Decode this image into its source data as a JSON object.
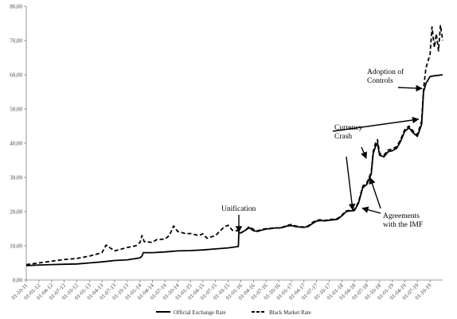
{
  "chart_data": {
    "type": "line",
    "title": "",
    "xlabel": "",
    "ylabel": "",
    "ylim": [
      0,
      80
    ],
    "yticks": [
      "0,00",
      "10,00",
      "20,00",
      "30,00",
      "40,00",
      "50,00",
      "60,00",
      "70,00",
      "80,00"
    ],
    "xticks": [
      "01-10-11",
      "01-01-12",
      "01-04-12",
      "01-07-12",
      "01-10-12",
      "01-01-13",
      "01-04-13",
      "01-07-13",
      "01-10-13",
      "01-01-14",
      "01-04-14",
      "01-07-14",
      "01-10-14",
      "01-01-15",
      "01-04-15",
      "01-07-15",
      "01-10-15",
      "01-01-16",
      "01-04-16",
      "01-07-16",
      "01-10-16",
      "01-01-17",
      "01-04-17",
      "01-07-17",
      "01-10-17",
      "01-01-18",
      "01-04-18",
      "01-07-18",
      "01-10-18",
      "01-01-19",
      "01-04-19",
      "01-07-19",
      "01-10-19"
    ],
    "grid": false,
    "legend_position": "bottom",
    "series": [
      {
        "name": "Official Exchange Rate",
        "style": "solid",
        "color": "#000000",
        "points": [
          [
            "01-10-11",
            4.2
          ],
          [
            "01-01-12",
            4.4
          ],
          [
            "01-04-12",
            4.5
          ],
          [
            "01-07-12",
            4.6
          ],
          [
            "01-10-12",
            4.7
          ],
          [
            "01-01-13",
            5.0
          ],
          [
            "01-04-13",
            5.3
          ],
          [
            "01-07-13",
            5.7
          ],
          [
            "01-10-13",
            5.9
          ],
          [
            "01-01-14",
            6.5
          ],
          [
            "15-01-14",
            7.0
          ],
          [
            "25-01-14",
            8.0
          ],
          [
            "01-04-14",
            8.0
          ],
          [
            "01-07-14",
            8.2
          ],
          [
            "01-10-14",
            8.5
          ],
          [
            "01-01-15",
            8.6
          ],
          [
            "01-04-15",
            8.8
          ],
          [
            "01-07-15",
            9.1
          ],
          [
            "01-10-15",
            9.4
          ],
          [
            "14-12-15",
            9.8
          ],
          [
            "17-12-15",
            13.8
          ],
          [
            "01-01-16",
            13.8
          ],
          [
            "01-02-16",
            14.5
          ],
          [
            "01-03-16",
            15.3
          ],
          [
            "01-04-16",
            14.4
          ],
          [
            "01-05-16",
            14.2
          ],
          [
            "01-06-16",
            14.6
          ],
          [
            "01-07-16",
            14.9
          ],
          [
            "01-08-16",
            15.0
          ],
          [
            "01-09-16",
            15.2
          ],
          [
            "01-10-16",
            15.2
          ],
          [
            "01-11-16",
            15.4
          ],
          [
            "01-12-16",
            15.8
          ],
          [
            "01-01-17",
            15.9
          ],
          [
            "01-02-17",
            15.6
          ],
          [
            "01-03-17",
            15.5
          ],
          [
            "01-04-17",
            15.4
          ],
          [
            "01-05-17",
            15.6
          ],
          [
            "01-06-17",
            16.5
          ],
          [
            "01-07-17",
            17.2
          ],
          [
            "01-08-17",
            17.4
          ],
          [
            "01-09-17",
            17.3
          ],
          [
            "01-10-17",
            17.5
          ],
          [
            "01-11-17",
            17.6
          ],
          [
            "01-12-17",
            17.8
          ],
          [
            "01-01-18",
            18.8
          ],
          [
            "01-02-18",
            20.0
          ],
          [
            "01-03-18",
            20.2
          ],
          [
            "01-04-18",
            20.3
          ],
          [
            "01-05-18",
            22.5
          ],
          [
            "01-06-18",
            27.0
          ],
          [
            "01-07-18",
            28.0
          ],
          [
            "01-08-18",
            31.0
          ],
          [
            "15-08-18",
            37.0
          ],
          [
            "01-09-18",
            39.0
          ],
          [
            "15-09-18",
            40.0
          ],
          [
            "01-10-18",
            36.5
          ],
          [
            "01-11-18",
            36.0
          ],
          [
            "01-12-18",
            37.5
          ],
          [
            "01-01-19",
            37.8
          ],
          [
            "01-02-19",
            38.5
          ],
          [
            "01-03-19",
            40.5
          ],
          [
            "01-04-19",
            43.5
          ],
          [
            "01-05-19",
            44.5
          ],
          [
            "01-06-19",
            43.0
          ],
          [
            "01-07-19",
            42.0
          ],
          [
            "01-08-19",
            45.5
          ],
          [
            "15-08-19",
            55.0
          ],
          [
            "01-09-19",
            57.5
          ],
          [
            "01-10-19",
            59.5
          ],
          [
            "01-11-19",
            59.7
          ],
          [
            "31-12-19",
            60.0
          ]
        ]
      },
      {
        "name": "Black Market Rate",
        "style": "dashed",
        "color": "#000000",
        "points": [
          [
            "01-10-11",
            4.5
          ],
          [
            "01-01-12",
            5.0
          ],
          [
            "01-04-12",
            5.5
          ],
          [
            "01-07-12",
            6.0
          ],
          [
            "01-10-12",
            6.3
          ],
          [
            "01-01-13",
            7.0
          ],
          [
            "01-04-13",
            8.0
          ],
          [
            "01-05-13",
            10.2
          ],
          [
            "01-07-13",
            8.5
          ],
          [
            "01-10-13",
            9.5
          ],
          [
            "01-12-13",
            10.0
          ],
          [
            "01-01-14",
            11.0
          ],
          [
            "15-01-14",
            13.0
          ],
          [
            "01-02-14",
            11.2
          ],
          [
            "01-04-14",
            11.0
          ],
          [
            "01-05-14",
            11.8
          ],
          [
            "01-07-14",
            12.0
          ],
          [
            "01-08-14",
            13.0
          ],
          [
            "01-09-14",
            15.8
          ],
          [
            "01-10-14",
            14.2
          ],
          [
            "01-12-14",
            13.5
          ],
          [
            "01-01-15",
            13.6
          ],
          [
            "01-03-15",
            13.0
          ],
          [
            "01-04-15",
            13.5
          ],
          [
            "01-05-15",
            12.2
          ],
          [
            "01-07-15",
            13.0
          ],
          [
            "01-09-15",
            15.5
          ],
          [
            "01-10-15",
            16.0
          ],
          [
            "01-11-15",
            14.5
          ],
          [
            "14-12-15",
            14.4
          ],
          [
            "17-12-15",
            14.0
          ],
          [
            "01-01-16",
            13.8
          ],
          [
            "01-02-16",
            14.5
          ],
          [
            "01-03-16",
            15.6
          ],
          [
            "01-04-16",
            14.8
          ],
          [
            "01-05-16",
            14.4
          ],
          [
            "01-06-16",
            14.8
          ],
          [
            "01-07-16",
            15.0
          ],
          [
            "01-08-16",
            15.1
          ],
          [
            "01-09-16",
            15.3
          ],
          [
            "01-10-16",
            15.2
          ],
          [
            "01-11-16",
            15.5
          ],
          [
            "01-12-16",
            16.0
          ],
          [
            "01-01-17",
            16.2
          ],
          [
            "01-02-17",
            15.8
          ],
          [
            "01-03-17",
            15.6
          ],
          [
            "01-04-17",
            15.5
          ],
          [
            "01-05-17",
            15.8
          ],
          [
            "01-06-17",
            16.8
          ],
          [
            "01-07-17",
            17.5
          ],
          [
            "01-08-17",
            17.6
          ],
          [
            "01-09-17",
            17.4
          ],
          [
            "01-10-17",
            17.7
          ],
          [
            "01-11-17",
            17.8
          ],
          [
            "01-12-17",
            18.0
          ],
          [
            "01-01-18",
            19.0
          ],
          [
            "01-02-18",
            20.2
          ],
          [
            "01-03-18",
            20.4
          ],
          [
            "01-04-18",
            20.6
          ],
          [
            "01-05-18",
            22.8
          ],
          [
            "01-06-18",
            27.5
          ],
          [
            "01-07-18",
            28.5
          ],
          [
            "01-08-18",
            31.5
          ],
          [
            "15-08-18",
            37.5
          ],
          [
            "01-09-18",
            40.0
          ],
          [
            "15-09-18",
            41.0
          ],
          [
            "01-10-18",
            37.0
          ],
          [
            "01-11-18",
            36.5
          ],
          [
            "01-12-18",
            38.0
          ],
          [
            "01-01-19",
            38.3
          ],
          [
            "01-02-19",
            39.0
          ],
          [
            "01-03-19",
            41.0
          ],
          [
            "01-04-19",
            44.0
          ],
          [
            "01-05-19",
            45.0
          ],
          [
            "01-06-19",
            43.5
          ],
          [
            "01-07-19",
            42.5
          ],
          [
            "01-08-19",
            46.5
          ],
          [
            "15-08-19",
            56.0
          ],
          [
            "01-09-19",
            62.0
          ],
          [
            "01-10-19",
            66.0
          ],
          [
            "15-10-19",
            74.0
          ],
          [
            "01-11-19",
            68.0
          ],
          [
            "15-11-19",
            72.0
          ],
          [
            "01-12-19",
            67.0
          ],
          [
            "15-12-19",
            74.5
          ],
          [
            "31-12-19",
            70.0
          ]
        ]
      }
    ],
    "annotations": [
      {
        "id": "unification",
        "lines": [
          "Unification"
        ],
        "x": "17-12-15",
        "y": 14.0
      },
      {
        "id": "currency-crash",
        "lines": [
          "Currency",
          "Crash"
        ],
        "x": "01-05-18",
        "y": 22.0
      },
      {
        "id": "agreements-imf",
        "lines": [
          "Agreements",
          "with the IMF"
        ],
        "x": "01-06-18",
        "y": 25.0
      },
      {
        "id": "adoption-controls",
        "lines": [
          "Adoption of",
          "Controls"
        ],
        "x": "01-09-19",
        "y": 56.0
      }
    ],
    "colors": {
      "axis": "#7f7f7f",
      "line": "#000000",
      "text": "#000000"
    }
  }
}
